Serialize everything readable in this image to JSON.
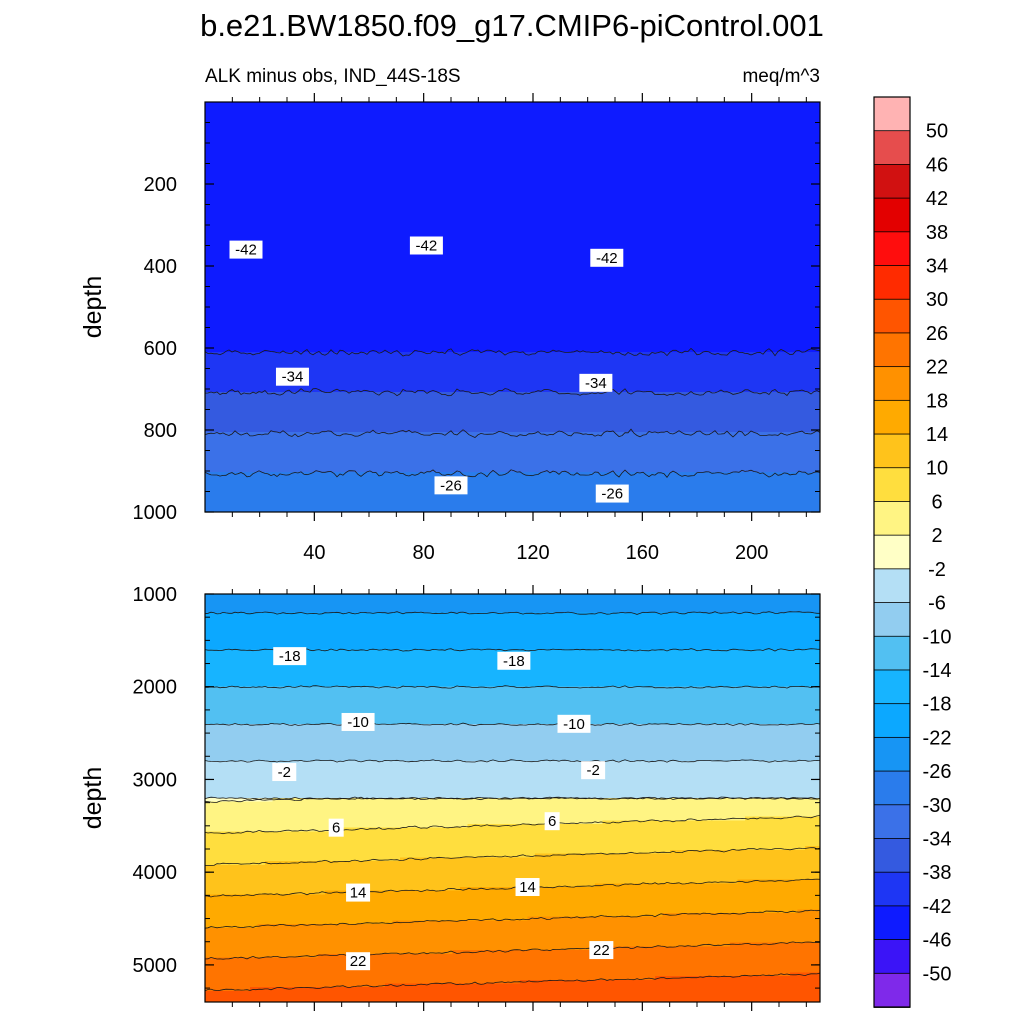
{
  "chart_data": {
    "type": "contour",
    "title": "b.e21.BW1850.f09_g17.CMIP6-piControl.001",
    "subtitle_left": "ALK minus obs, IND_44S-18S",
    "subtitle_right": "meq/m^3",
    "xlim": [
      0,
      225
    ],
    "x_ticks": [
      "40",
      "80",
      "120",
      "160",
      "200"
    ],
    "x_tick_values": [
      40,
      80,
      120,
      160,
      200
    ],
    "colorbar": {
      "levels": [
        "50",
        "46",
        "42",
        "38",
        "34",
        "30",
        "26",
        "22",
        "18",
        "14",
        "10",
        "6",
        "2",
        "-2",
        "-6",
        "-10",
        "-14",
        "-18",
        "-22",
        "-26",
        "-30",
        "-34",
        "-38",
        "-42",
        "-46",
        "-50"
      ],
      "colors": [
        "#ffb3b3",
        "#e64d4d",
        "#d11111",
        "#e30000",
        "#ff0d0d",
        "#ff2b00",
        "#ff5500",
        "#ff7400",
        "#ff9100",
        "#ffaa00",
        "#ffc31b",
        "#ffde3e",
        "#fff483",
        "#ffffc6",
        "#b4dff5",
        "#92cdf0",
        "#52c0f2",
        "#17b4ff",
        "#0ca8ff",
        "#1795f4",
        "#2a7cec",
        "#3b71e8",
        "#345ae0",
        "#1e36f4",
        "#0e1bff",
        "#3b14f7",
        "#7f29ea"
      ]
    },
    "panels": [
      {
        "ylabel": "depth",
        "ylim": [
          1000,
          0
        ],
        "y_ticks": [
          "200",
          "400",
          "600",
          "800",
          "1000"
        ],
        "y_tick_values": [
          200,
          400,
          600,
          800,
          1000
        ],
        "contour_labels": [
          {
            "text": "-42",
            "x": 15,
            "y": 360
          },
          {
            "text": "-42",
            "x": 81,
            "y": 350
          },
          {
            "text": "-42",
            "x": 147,
            "y": 380
          },
          {
            "text": "-34",
            "x": 32,
            "y": 670
          },
          {
            "text": "-34",
            "x": 143,
            "y": 685
          },
          {
            "text": "-26",
            "x": 90,
            "y": 935
          },
          {
            "text": "-26",
            "x": 149,
            "y": 955
          }
        ]
      },
      {
        "ylabel": "depth",
        "ylim": [
          5400,
          1000
        ],
        "y_ticks": [
          "1000",
          "2000",
          "3000",
          "4000",
          "5000"
        ],
        "y_tick_values": [
          1000,
          2000,
          3000,
          4000,
          5000
        ],
        "contour_labels": [
          {
            "text": "-18",
            "x": 31,
            "y": 1670
          },
          {
            "text": "-18",
            "x": 113,
            "y": 1720
          },
          {
            "text": "-10",
            "x": 56,
            "y": 2380
          },
          {
            "text": "-10",
            "x": 135,
            "y": 2400
          },
          {
            "text": "-2",
            "x": 29,
            "y": 2920
          },
          {
            "text": "-2",
            "x": 142,
            "y": 2900
          },
          {
            "text": "6",
            "x": 48,
            "y": 3520
          },
          {
            "text": "6",
            "x": 127,
            "y": 3450
          },
          {
            "text": "14",
            "x": 56,
            "y": 4220
          },
          {
            "text": "14",
            "x": 118,
            "y": 4160
          },
          {
            "text": "22",
            "x": 56,
            "y": 4960
          },
          {
            "text": "22",
            "x": 145,
            "y": 4840
          }
        ]
      }
    ]
  }
}
